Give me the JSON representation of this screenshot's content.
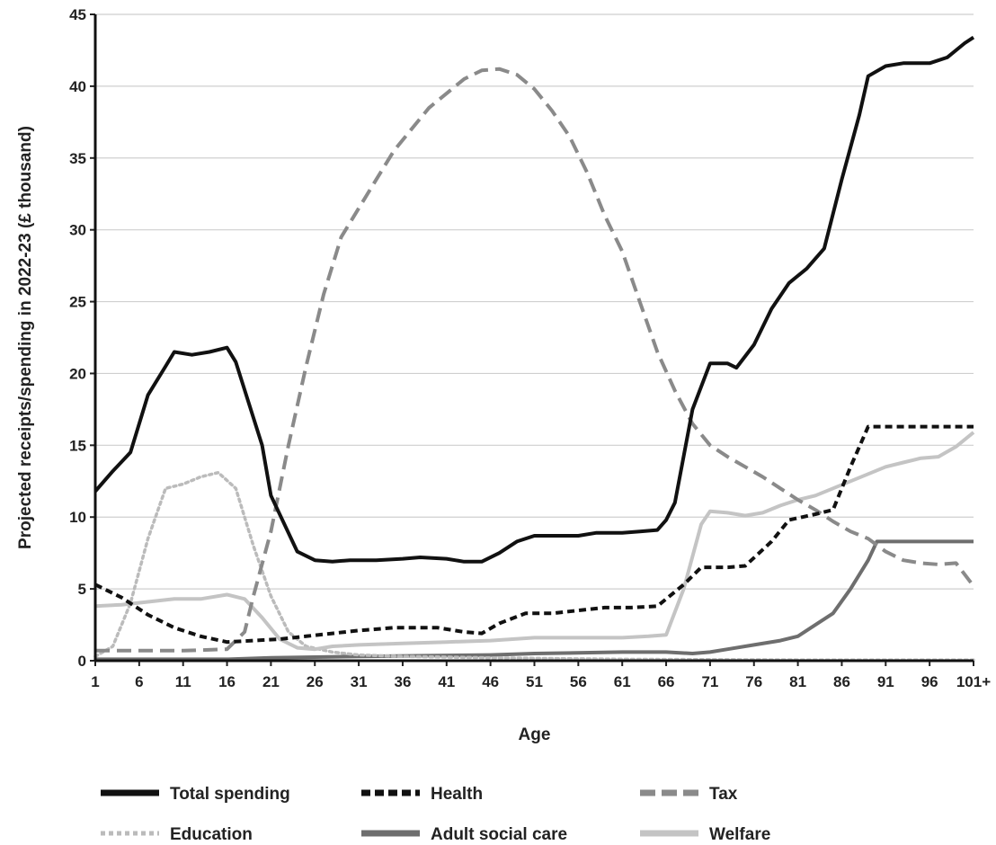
{
  "chart_data": {
    "type": "line",
    "title": "",
    "xlabel": "Age",
    "ylabel": "Projected receipts/spending in 2022-23 (£ thousand)",
    "xlim": [
      1,
      101
    ],
    "ylim": [
      0,
      45
    ],
    "x_ticks": [
      "1",
      "6",
      "11",
      "16",
      "21",
      "26",
      "31",
      "36",
      "41",
      "46",
      "51",
      "56",
      "61",
      "66",
      "71",
      "76",
      "81",
      "86",
      "91",
      "96",
      "101+"
    ],
    "y_ticks": [
      0,
      5,
      10,
      15,
      20,
      25,
      30,
      35,
      40,
      45
    ],
    "grid": "horizontal",
    "legend_position": "bottom",
    "series": [
      {
        "name": "Total spending",
        "color": "#111111",
        "style": "solid",
        "points": [
          [
            1,
            11.8
          ],
          [
            3,
            13.2
          ],
          [
            5,
            14.5
          ],
          [
            7,
            18.5
          ],
          [
            9,
            20.5
          ],
          [
            10,
            21.5
          ],
          [
            12,
            21.3
          ],
          [
            14,
            21.5
          ],
          [
            16,
            21.8
          ],
          [
            17,
            20.8
          ],
          [
            20,
            15
          ],
          [
            21,
            11.5
          ],
          [
            24,
            7.6
          ],
          [
            26,
            7.0
          ],
          [
            28,
            6.9
          ],
          [
            30,
            7.0
          ],
          [
            33,
            7.0
          ],
          [
            36,
            7.1
          ],
          [
            38,
            7.2
          ],
          [
            41,
            7.1
          ],
          [
            43,
            6.9
          ],
          [
            45,
            6.9
          ],
          [
            47,
            7.5
          ],
          [
            49,
            8.3
          ],
          [
            51,
            8.7
          ],
          [
            53,
            8.7
          ],
          [
            56,
            8.7
          ],
          [
            58,
            8.9
          ],
          [
            61,
            8.9
          ],
          [
            63,
            9.0
          ],
          [
            65,
            9.1
          ],
          [
            66,
            9.8
          ],
          [
            67,
            11
          ],
          [
            69,
            17.5
          ],
          [
            71,
            20.7
          ],
          [
            73,
            20.7
          ],
          [
            74,
            20.4
          ],
          [
            76,
            22.0
          ],
          [
            78,
            24.5
          ],
          [
            80,
            26.3
          ],
          [
            82,
            27.3
          ],
          [
            84,
            28.7
          ],
          [
            86,
            33.5
          ],
          [
            88,
            38.0
          ],
          [
            89,
            40.7
          ],
          [
            91,
            41.4
          ],
          [
            93,
            41.6
          ],
          [
            96,
            41.6
          ],
          [
            98,
            42.0
          ],
          [
            100,
            43.0
          ],
          [
            101,
            43.4
          ]
        ]
      },
      {
        "name": "Health",
        "color": "#111111",
        "style": "dashed",
        "points": [
          [
            1,
            5.3
          ],
          [
            4,
            4.4
          ],
          [
            7,
            3.2
          ],
          [
            10,
            2.3
          ],
          [
            13,
            1.7
          ],
          [
            16,
            1.3
          ],
          [
            19,
            1.4
          ],
          [
            22,
            1.5
          ],
          [
            25,
            1.7
          ],
          [
            28,
            1.9
          ],
          [
            31,
            2.1
          ],
          [
            35,
            2.3
          ],
          [
            40,
            2.3
          ],
          [
            43,
            2.0
          ],
          [
            45,
            1.9
          ],
          [
            47,
            2.6
          ],
          [
            50,
            3.3
          ],
          [
            53,
            3.3
          ],
          [
            56,
            3.5
          ],
          [
            59,
            3.7
          ],
          [
            62,
            3.7
          ],
          [
            65,
            3.8
          ],
          [
            68,
            5.3
          ],
          [
            70,
            6.5
          ],
          [
            73,
            6.5
          ],
          [
            75,
            6.6
          ],
          [
            78,
            8.3
          ],
          [
            80,
            9.8
          ],
          [
            83,
            10.2
          ],
          [
            85,
            10.5
          ],
          [
            87,
            13.5
          ],
          [
            89,
            16.3
          ],
          [
            92,
            16.3
          ],
          [
            96,
            16.3
          ],
          [
            101,
            16.3
          ]
        ]
      },
      {
        "name": "Tax",
        "color": "#8a8a8a",
        "style": "dashed",
        "points": [
          [
            1,
            0.7
          ],
          [
            6,
            0.7
          ],
          [
            11,
            0.7
          ],
          [
            16,
            0.8
          ],
          [
            18,
            2.0
          ],
          [
            19,
            4.5
          ],
          [
            21,
            9.0
          ],
          [
            23,
            15.0
          ],
          [
            25,
            20.5
          ],
          [
            27,
            25.5
          ],
          [
            29,
            29.5
          ],
          [
            31,
            31.5
          ],
          [
            33,
            33.5
          ],
          [
            35,
            35.5
          ],
          [
            37,
            37.0
          ],
          [
            39,
            38.5
          ],
          [
            41,
            39.5
          ],
          [
            43,
            40.5
          ],
          [
            45,
            41.1
          ],
          [
            47,
            41.2
          ],
          [
            49,
            40.8
          ],
          [
            51,
            39.8
          ],
          [
            53,
            38.3
          ],
          [
            55,
            36.5
          ],
          [
            57,
            34.0
          ],
          [
            59,
            31.0
          ],
          [
            61,
            28.5
          ],
          [
            63,
            25.0
          ],
          [
            65,
            21.5
          ],
          [
            67,
            18.8
          ],
          [
            69,
            16.5
          ],
          [
            71,
            15.0
          ],
          [
            73,
            14.2
          ],
          [
            75,
            13.5
          ],
          [
            77,
            12.8
          ],
          [
            79,
            12.0
          ],
          [
            81,
            11.2
          ],
          [
            83,
            10.5
          ],
          [
            85,
            9.7
          ],
          [
            87,
            9.0
          ],
          [
            89,
            8.5
          ],
          [
            91,
            7.6
          ],
          [
            93,
            7.0
          ],
          [
            95,
            6.8
          ],
          [
            97,
            6.7
          ],
          [
            99,
            6.8
          ],
          [
            101,
            5.2
          ]
        ]
      },
      {
        "name": "Education",
        "color": "#bbbbbb",
        "style": "dotted",
        "points": [
          [
            1,
            0.3
          ],
          [
            3,
            1.0
          ],
          [
            5,
            4.0
          ],
          [
            7,
            8.5
          ],
          [
            9,
            12.0
          ],
          [
            11,
            12.3
          ],
          [
            13,
            12.8
          ],
          [
            15,
            13.1
          ],
          [
            17,
            12.0
          ],
          [
            19,
            8.0
          ],
          [
            21,
            4.5
          ],
          [
            23,
            2.0
          ],
          [
            25,
            1.0
          ],
          [
            28,
            0.6
          ],
          [
            31,
            0.4
          ],
          [
            36,
            0.3
          ],
          [
            46,
            0.2
          ],
          [
            61,
            0.1
          ],
          [
            81,
            0.05
          ],
          [
            101,
            0.05
          ]
        ]
      },
      {
        "name": "Adult social care",
        "color": "#6e6e6e",
        "style": "solid",
        "points": [
          [
            1,
            0.1
          ],
          [
            16,
            0.1
          ],
          [
            21,
            0.2
          ],
          [
            31,
            0.3
          ],
          [
            46,
            0.4
          ],
          [
            51,
            0.5
          ],
          [
            61,
            0.6
          ],
          [
            66,
            0.6
          ],
          [
            69,
            0.5
          ],
          [
            71,
            0.6
          ],
          [
            73,
            0.8
          ],
          [
            76,
            1.1
          ],
          [
            79,
            1.4
          ],
          [
            81,
            1.7
          ],
          [
            83,
            2.5
          ],
          [
            85,
            3.3
          ],
          [
            87,
            5.0
          ],
          [
            89,
            7.0
          ],
          [
            90,
            8.3
          ],
          [
            93,
            8.3
          ],
          [
            96,
            8.3
          ],
          [
            101,
            8.3
          ]
        ]
      },
      {
        "name": "Welfare",
        "color": "#c4c4c4",
        "style": "solid",
        "points": [
          [
            1,
            3.8
          ],
          [
            4,
            3.9
          ],
          [
            7,
            4.1
          ],
          [
            10,
            4.3
          ],
          [
            13,
            4.3
          ],
          [
            16,
            4.6
          ],
          [
            18,
            4.3
          ],
          [
            20,
            3.0
          ],
          [
            22,
            1.5
          ],
          [
            24,
            0.9
          ],
          [
            26,
            0.8
          ],
          [
            28,
            1.0
          ],
          [
            31,
            1.1
          ],
          [
            36,
            1.2
          ],
          [
            41,
            1.3
          ],
          [
            46,
            1.4
          ],
          [
            51,
            1.6
          ],
          [
            56,
            1.6
          ],
          [
            61,
            1.6
          ],
          [
            64,
            1.7
          ],
          [
            66,
            1.8
          ],
          [
            68,
            5.0
          ],
          [
            70,
            9.5
          ],
          [
            71,
            10.4
          ],
          [
            73,
            10.3
          ],
          [
            75,
            10.1
          ],
          [
            77,
            10.3
          ],
          [
            79,
            10.8
          ],
          [
            81,
            11.2
          ],
          [
            83,
            11.5
          ],
          [
            85,
            12.0
          ],
          [
            87,
            12.5
          ],
          [
            89,
            13.0
          ],
          [
            91,
            13.5
          ],
          [
            93,
            13.8
          ],
          [
            95,
            14.1
          ],
          [
            97,
            14.2
          ],
          [
            99,
            14.9
          ],
          [
            101,
            15.9
          ]
        ]
      }
    ]
  }
}
